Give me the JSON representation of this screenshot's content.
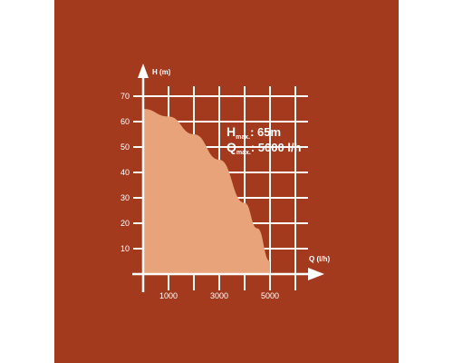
{
  "chart_data": {
    "type": "area",
    "ylabel": "H (m)",
    "xlabel": "Q (l/h)",
    "x_ticks": [
      1000,
      3000,
      5000
    ],
    "y_ticks": [
      10,
      20,
      30,
      40,
      50,
      60,
      70
    ],
    "xlim": [
      0,
      6500
    ],
    "ylim": [
      0,
      70
    ],
    "grid": true,
    "series": [
      {
        "x": [
          0,
          1000,
          2000,
          3000,
          4000,
          4500,
          5000
        ],
        "y": [
          65,
          62,
          55,
          45,
          28,
          18,
          5
        ]
      }
    ],
    "fill_color": "#e8a37a",
    "background_color": "#a33a1e",
    "annotation": {
      "h_label": "H",
      "h_sub": "max.",
      "h_value": ": 65m",
      "q_label": "Q",
      "q_sub": "max.",
      "q_value": ": 5000 l/h"
    }
  }
}
